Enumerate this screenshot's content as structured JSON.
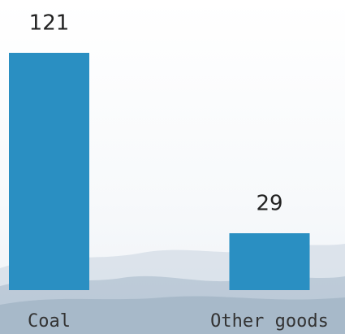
{
  "chart_data": {
    "type": "bar",
    "categories": [
      "Coal",
      "Other goods"
    ],
    "values": [
      121,
      29
    ],
    "color": "#2a8fc2"
  }
}
